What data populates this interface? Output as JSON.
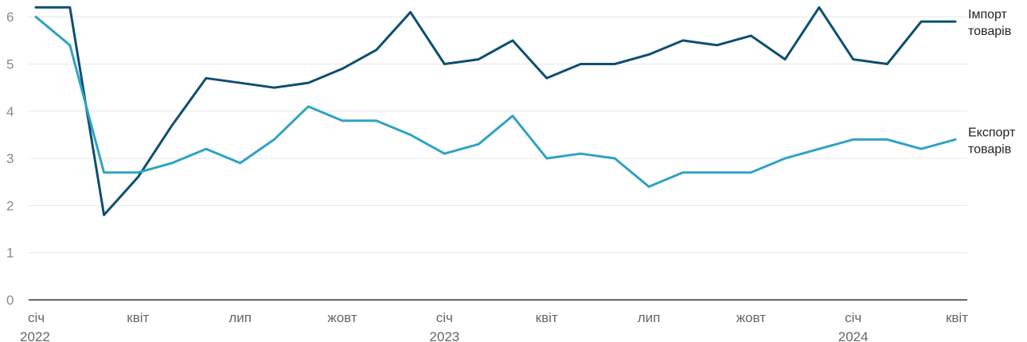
{
  "chart_data": {
    "type": "line",
    "x": [
      "2022-01",
      "2022-02",
      "2022-03",
      "2022-04",
      "2022-05",
      "2022-06",
      "2022-07",
      "2022-08",
      "2022-09",
      "2022-10",
      "2022-11",
      "2022-12",
      "2023-01",
      "2023-02",
      "2023-03",
      "2023-04",
      "2023-05",
      "2023-06",
      "2023-07",
      "2023-08",
      "2023-09",
      "2023-10",
      "2023-11",
      "2023-12",
      "2024-01",
      "2024-02",
      "2024-03",
      "2024-04"
    ],
    "x_tick_labels": [
      {
        "month": "січ",
        "year": "2022",
        "x": "2022-01"
      },
      {
        "month": "квіт",
        "year": "",
        "x": "2022-04"
      },
      {
        "month": "лип",
        "year": "",
        "x": "2022-07"
      },
      {
        "month": "жовт",
        "year": "",
        "x": "2022-10"
      },
      {
        "month": "січ",
        "year": "2023",
        "x": "2023-01"
      },
      {
        "month": "квіт",
        "year": "",
        "x": "2023-04"
      },
      {
        "month": "лип",
        "year": "",
        "x": "2023-07"
      },
      {
        "month": "жовт",
        "year": "",
        "x": "2023-10"
      },
      {
        "month": "січ",
        "year": "2024",
        "x": "2024-01"
      },
      {
        "month": "квіт",
        "year": "",
        "x": "2024-04"
      }
    ],
    "y_ticks": [
      0,
      1,
      2,
      3,
      4,
      5,
      6
    ],
    "ylim": [
      0,
      6.3
    ],
    "grid": true,
    "series": [
      {
        "name_lines": [
          "Імпорт",
          "товарів"
        ],
        "color": "#0d4f70",
        "values": [
          6.2,
          6.2,
          1.8,
          2.6,
          3.7,
          4.7,
          4.6,
          4.5,
          4.6,
          4.9,
          5.3,
          6.1,
          5.0,
          5.1,
          5.5,
          4.7,
          5.0,
          5.0,
          5.2,
          5.5,
          5.4,
          5.6,
          5.1,
          6.2,
          5.1,
          5.0,
          5.9,
          5.9
        ]
      },
      {
        "name_lines": [
          "Експорт",
          "товарів"
        ],
        "color": "#2fa3c4",
        "values": [
          6.0,
          5.4,
          2.7,
          2.7,
          2.9,
          3.2,
          2.9,
          3.4,
          4.1,
          3.8,
          3.8,
          3.5,
          3.1,
          3.3,
          3.9,
          3.0,
          3.1,
          3.0,
          2.4,
          2.7,
          2.7,
          2.7,
          3.0,
          3.2,
          3.4,
          3.4,
          3.2,
          3.4
        ]
      }
    ]
  }
}
